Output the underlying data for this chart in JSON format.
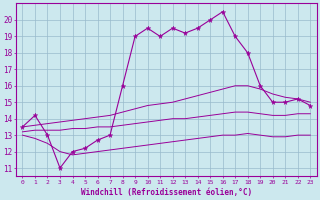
{
  "hours": [
    0,
    1,
    2,
    3,
    4,
    5,
    6,
    7,
    8,
    9,
    10,
    11,
    12,
    13,
    14,
    15,
    16,
    17,
    18,
    19,
    20,
    21,
    22,
    23
  ],
  "temp": [
    13.5,
    14.2,
    13.0,
    11.0,
    12.0,
    12.2,
    12.7,
    13.0,
    16.0,
    19.0,
    19.5,
    19.0,
    19.5,
    19.2,
    19.5,
    20.0,
    20.5,
    19.0,
    18.0,
    16.0,
    15.0,
    15.0,
    15.2,
    14.8
  ],
  "temp_high": [
    13.5,
    13.6,
    13.7,
    13.8,
    13.9,
    14.0,
    14.1,
    14.2,
    14.4,
    14.6,
    14.8,
    14.9,
    15.0,
    15.2,
    15.4,
    15.6,
    15.8,
    16.0,
    16.0,
    15.8,
    15.5,
    15.3,
    15.2,
    15.0
  ],
  "temp_mid": [
    13.2,
    13.3,
    13.3,
    13.3,
    13.4,
    13.4,
    13.5,
    13.5,
    13.6,
    13.7,
    13.8,
    13.9,
    14.0,
    14.0,
    14.1,
    14.2,
    14.3,
    14.4,
    14.4,
    14.3,
    14.2,
    14.2,
    14.3,
    14.3
  ],
  "temp_low": [
    13.0,
    12.8,
    12.5,
    12.0,
    11.8,
    11.9,
    12.0,
    12.1,
    12.2,
    12.3,
    12.4,
    12.5,
    12.6,
    12.7,
    12.8,
    12.9,
    13.0,
    13.0,
    13.1,
    13.0,
    12.9,
    12.9,
    13.0,
    13.0
  ],
  "line_color": "#990099",
  "bg_color": "#cce8ee",
  "grid_color": "#99bbcc",
  "xlabel": "Windchill (Refroidissement éolien,°C)",
  "ylabel_vals": [
    11,
    12,
    13,
    14,
    15,
    16,
    17,
    18,
    19,
    20
  ],
  "xlim": [
    -0.5,
    23.5
  ],
  "ylim": [
    10.5,
    21.0
  ]
}
